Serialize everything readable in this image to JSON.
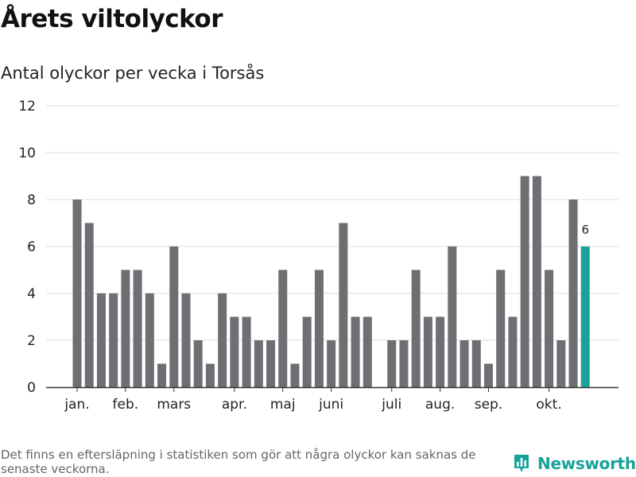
{
  "header": {
    "title": "Årets viltolyckor",
    "subtitle": "Antal olyckor per vecka i Torsås"
  },
  "footer": {
    "note": "Det finns en eftersläpning i statistiken som gör att några olyckor kan saknas de senaste veckorna.",
    "brand_name": "Newsworthy",
    "brand_color": "#17a398",
    "brand_icon": "bar-chart-speech-bubble-icon"
  },
  "colors": {
    "bar": "#6e6e73",
    "highlight": "#17a398",
    "grid": "#dddddd",
    "axis": "#333333"
  },
  "chart_data": {
    "type": "bar",
    "title": "Antal olyckor per vecka i Torsås",
    "xlabel": "",
    "ylabel": "",
    "ylim": [
      0,
      12
    ],
    "yticks": [
      0,
      2,
      4,
      6,
      8,
      10,
      12
    ],
    "grid": true,
    "x": [
      1,
      2,
      3,
      4,
      5,
      6,
      7,
      8,
      9,
      10,
      11,
      12,
      13,
      14,
      15,
      16,
      17,
      18,
      19,
      20,
      21,
      22,
      23,
      24,
      25,
      26,
      27,
      28,
      29,
      30,
      31,
      32,
      33,
      34,
      35,
      36,
      37,
      38,
      39,
      40,
      41,
      42,
      43
    ],
    "values": [
      8,
      7,
      4,
      4,
      5,
      5,
      4,
      1,
      6,
      4,
      2,
      1,
      4,
      3,
      3,
      2,
      2,
      5,
      1,
      3,
      5,
      2,
      7,
      3,
      3,
      0,
      2,
      2,
      5,
      3,
      3,
      6,
      2,
      2,
      1,
      5,
      3,
      9,
      9,
      5,
      2,
      8,
      6
    ],
    "highlight_index": 42,
    "highlight_label": "6",
    "month_labels": [
      {
        "label": "jan.",
        "week": 1
      },
      {
        "label": "feb.",
        "week": 5
      },
      {
        "label": "mars",
        "week": 9
      },
      {
        "label": "apr.",
        "week": 14
      },
      {
        "label": "maj",
        "week": 18
      },
      {
        "label": "juni",
        "week": 22
      },
      {
        "label": "juli",
        "week": 27
      },
      {
        "label": "aug.",
        "week": 31
      },
      {
        "label": "sep.",
        "week": 35
      },
      {
        "label": "okt.",
        "week": 40
      }
    ]
  }
}
